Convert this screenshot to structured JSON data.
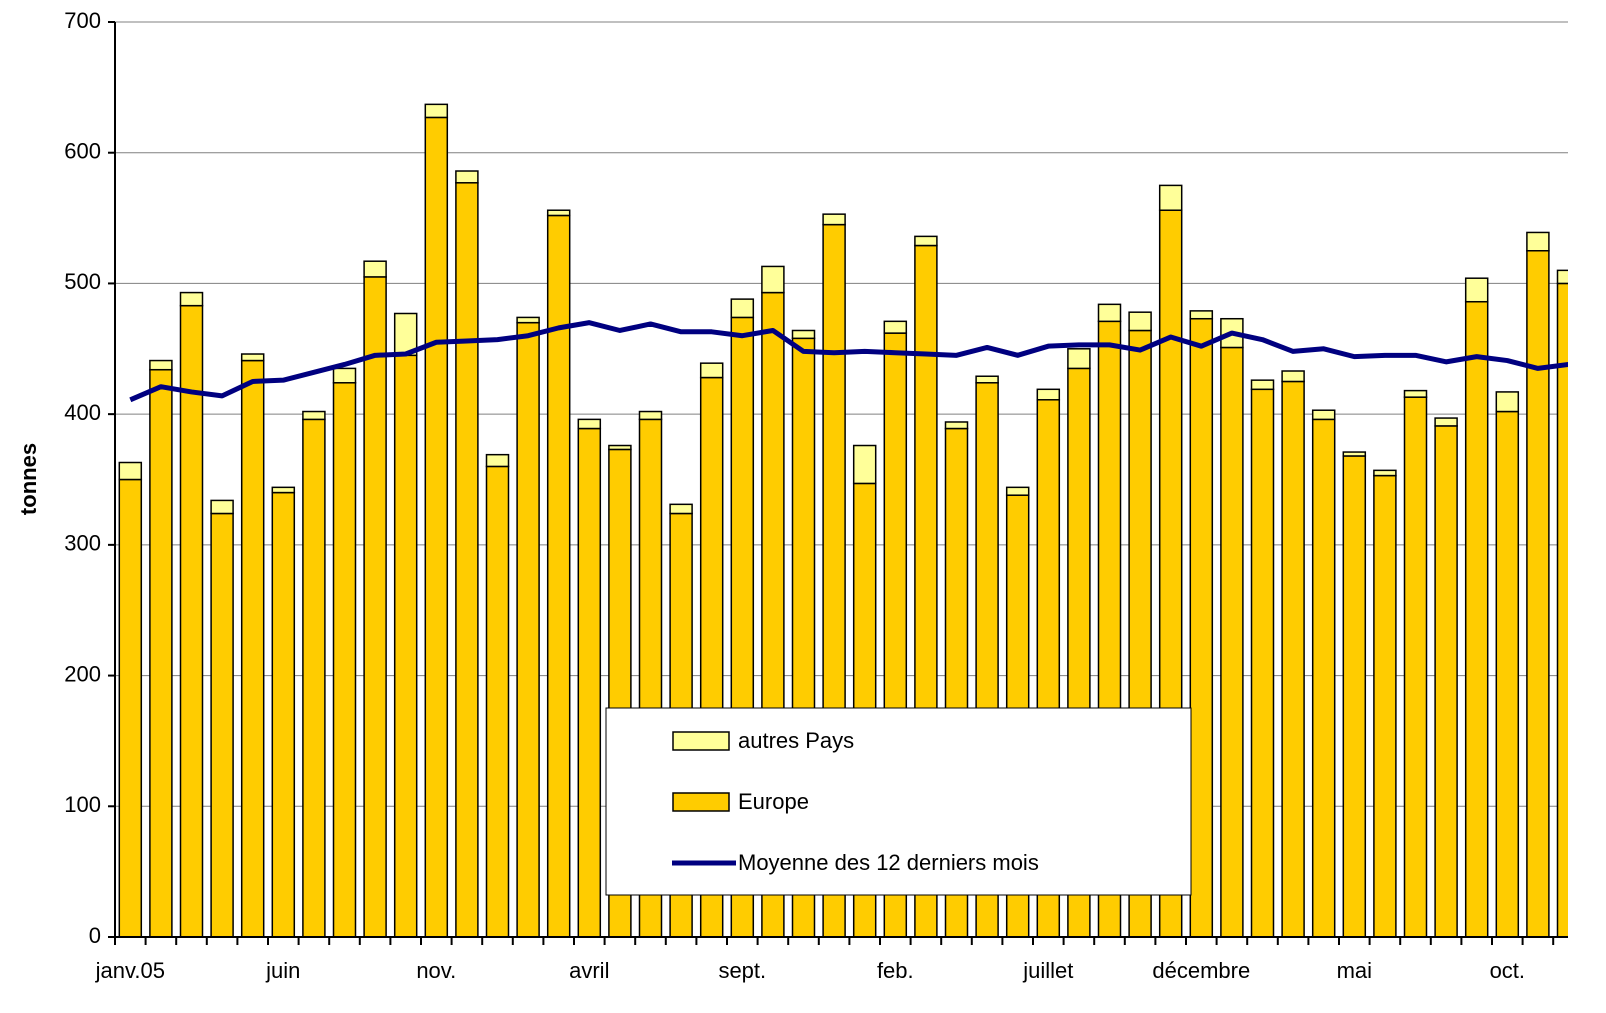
{
  "chart_data": {
    "type": "bar",
    "stacked": true,
    "y_label": "tonnes",
    "categories": [
      "janv.05",
      null,
      null,
      null,
      null,
      "juin",
      null,
      null,
      null,
      null,
      "nov.",
      null,
      null,
      null,
      null,
      "avril",
      null,
      null,
      null,
      null,
      "sept.",
      null,
      null,
      null,
      null,
      "feb.",
      null,
      null,
      null,
      null,
      "juillet",
      null,
      null,
      null,
      null,
      "décembre",
      null,
      null,
      null,
      null,
      "mai",
      null,
      null,
      null,
      null,
      "oct.",
      null,
      null
    ],
    "series": [
      {
        "name": "Europe",
        "type": "bar",
        "color": "#ffcc00",
        "values": [
          350,
          434,
          483,
          324,
          441,
          340,
          396,
          424,
          505,
          445,
          627,
          577,
          360,
          470,
          552,
          389,
          373,
          396,
          324,
          428,
          474,
          493,
          458,
          545,
          347,
          462,
          529,
          389,
          424,
          338,
          411,
          435,
          471,
          464,
          556,
          473,
          451,
          419,
          425,
          396,
          368,
          353,
          413,
          391,
          486,
          402,
          525,
          500
        ]
      },
      {
        "name": "autres Pays",
        "type": "bar",
        "color": "#ffff99",
        "values": [
          13,
          7,
          10,
          10,
          5,
          4,
          6,
          11,
          12,
          32,
          10,
          9,
          9,
          4,
          4,
          7,
          3,
          6,
          7,
          11,
          14,
          20,
          6,
          8,
          29,
          9,
          7,
          5,
          5,
          6,
          8,
          15,
          13,
          14,
          19,
          6,
          22,
          7,
          8,
          7,
          3,
          4,
          5,
          6,
          18,
          15,
          14,
          10
        ]
      },
      {
        "name": "Moyenne des 12 derniers mois",
        "type": "line",
        "color": "#000080",
        "values": [
          411,
          421,
          417,
          414,
          425,
          426,
          432,
          438,
          445,
          446,
          455,
          456,
          457,
          460,
          466,
          470,
          464,
          469,
          463,
          463,
          460,
          464,
          448,
          447,
          448,
          447,
          446,
          445,
          451,
          445,
          452,
          453,
          453,
          449,
          459,
          452,
          462,
          457,
          448,
          450,
          444,
          445,
          445,
          440,
          444,
          441,
          435,
          438
        ]
      }
    ],
    "legend_order": [
      1,
      0,
      2
    ],
    "ylim": [
      0,
      700
    ],
    "yticks": [
      0,
      100,
      200,
      300,
      400,
      500,
      600,
      700
    ],
    "grid": true
  }
}
